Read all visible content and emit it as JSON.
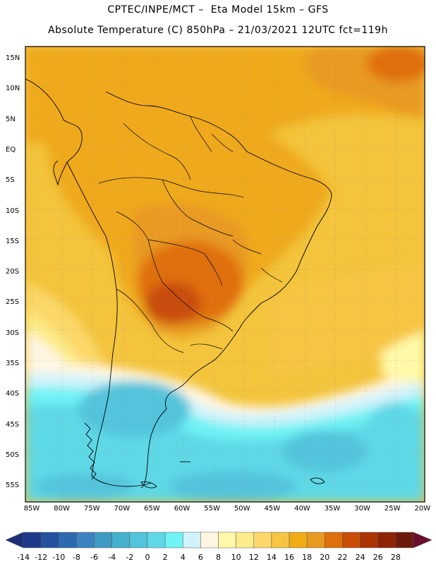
{
  "title_line1": "CPTEC/INPE/MCT –  Eta Model 15km – GFS",
  "title_line2": "Absolute Temperature (C) 850hPa – 21/03/2021 12UTC fct=119h",
  "lat_labels": [
    "15N",
    "10N",
    "5N",
    "EQ",
    "5S",
    "10S",
    "15S",
    "20S",
    "25S",
    "30S",
    "35S",
    "40S",
    "45S",
    "50S",
    "55S"
  ],
  "lon_labels": [
    "85W",
    "80W",
    "75W",
    "70W",
    "65W",
    "60W",
    "55W",
    "50W",
    "45W",
    "40W",
    "35W",
    "30W",
    "25W",
    "20W"
  ],
  "colorbar": {
    "labels": [
      "-14",
      "-12",
      "-10",
      "-8",
      "-6",
      "-4",
      "-2",
      "0",
      "2",
      "4",
      "6",
      "8",
      "10",
      "12",
      "14",
      "16",
      "18",
      "20",
      "22",
      "24",
      "26",
      "28"
    ],
    "colors": [
      "#1f3a8a",
      "#24529e",
      "#2c6aaf",
      "#3b82c0",
      "#3f9ac4",
      "#45b0ce",
      "#52c4db",
      "#5fd8e6",
      "#6ff3f5",
      "#d0f3fb",
      "#fff6e2",
      "#fff9a8",
      "#fdec8a",
      "#fcd86a",
      "#f7c542",
      "#efac14",
      "#e89a20",
      "#df6f0a",
      "#c94e07",
      "#ad3405",
      "#8e2405",
      "#6e1a0a"
    ],
    "left_arrow_color": "#1e2f7a",
    "right_arrow_color": "#6b0e2e"
  }
}
